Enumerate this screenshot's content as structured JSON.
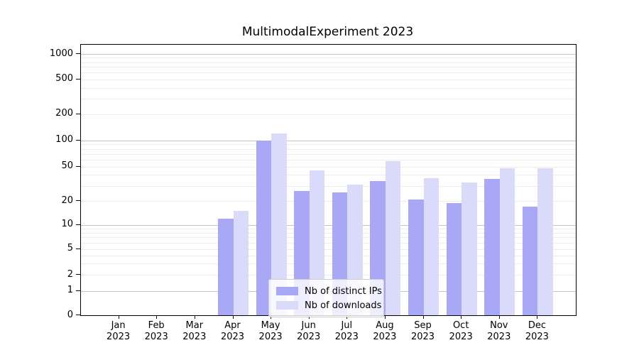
{
  "chart_data": {
    "type": "bar",
    "title": "MultimodalExperiment 2023",
    "categories": [
      "Jan",
      "Feb",
      "Mar",
      "Apr",
      "May",
      "Jun",
      "Jul",
      "Aug",
      "Sep",
      "Oct",
      "Nov",
      "Dec"
    ],
    "x_sub_label": "2023",
    "series": [
      {
        "name": "Nb of distinct IPs",
        "color": "#a8a8f7",
        "values": [
          0,
          0,
          0,
          12,
          100,
          26,
          25,
          34,
          21,
          19,
          36,
          17
        ]
      },
      {
        "name": "Nb of downloads",
        "color": "#dadafb",
        "values": [
          0,
          0,
          0,
          15,
          120,
          45,
          31,
          58,
          37,
          33,
          48,
          48
        ]
      }
    ],
    "y_ticks": [
      0,
      1,
      2,
      5,
      10,
      20,
      50,
      100,
      200,
      500,
      1000
    ],
    "y_scale": "symlog",
    "ylim": [
      0,
      1150
    ],
    "grid": true,
    "legend_position": "lower center",
    "colors": {
      "grid_major": "#c3c3c3",
      "grid_minor": "#ececec",
      "axis": "#000000"
    }
  }
}
